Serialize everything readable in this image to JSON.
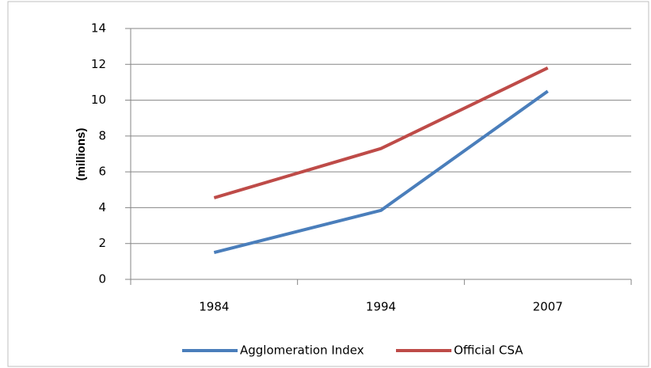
{
  "chart_data": {
    "type": "line",
    "y_label": "(millions)",
    "categories": [
      "1984",
      "1994",
      "2007"
    ],
    "series": [
      {
        "name": "Agglomeration Index",
        "color": "#4a7ebb",
        "values": [
          1.5,
          3.85,
          10.5
        ]
      },
      {
        "name": "Official CSA",
        "color": "#be4b48",
        "values": [
          4.55,
          7.3,
          11.8
        ]
      }
    ],
    "ylim": [
      0,
      14
    ],
    "yticks": [
      0,
      2,
      4,
      6,
      8,
      10,
      12,
      14
    ],
    "grid": true,
    "legend": "bottom"
  }
}
